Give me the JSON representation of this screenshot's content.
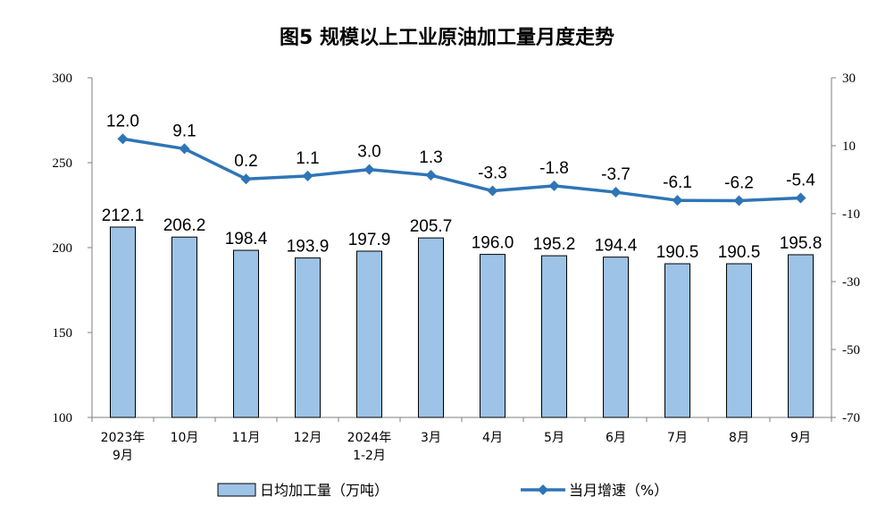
{
  "chart_data": {
    "type": "bar+line",
    "title": "图5  规模以上工业原油加工量月度走势",
    "categories": [
      [
        "2023年",
        "9月"
      ],
      [
        "10月"
      ],
      [
        "11月"
      ],
      [
        "12月"
      ],
      [
        "2024年",
        "1-2月"
      ],
      [
        "3月"
      ],
      [
        "4月"
      ],
      [
        "5月"
      ],
      [
        "6月"
      ],
      [
        "7月"
      ],
      [
        "8月"
      ],
      [
        "9月"
      ]
    ],
    "series": [
      {
        "name": "日均加工量（万吨）",
        "type": "bar",
        "axis": "left",
        "color": "#9dc3e6",
        "stroke": "#000000",
        "values": [
          212.1,
          206.2,
          198.4,
          193.9,
          197.9,
          205.7,
          196.0,
          195.2,
          194.4,
          190.5,
          190.5,
          195.8
        ],
        "labels": [
          "212.1",
          "206.2",
          "198.4",
          "193.9",
          "197.9",
          "205.7",
          "196.0",
          "195.2",
          "194.4",
          "190.5",
          "190.5",
          "195.8"
        ]
      },
      {
        "name": "当月增速（%）",
        "type": "line",
        "axis": "right",
        "color": "#2e75b6",
        "marker": "diamond",
        "values": [
          12.0,
          9.1,
          0.2,
          1.1,
          3.0,
          1.3,
          -3.3,
          -1.8,
          -3.7,
          -6.1,
          -6.2,
          -5.4
        ],
        "labels": [
          "12.0",
          "9.1",
          "0.2",
          "1.1",
          "3.0",
          "1.3",
          "-3.3",
          "-1.8",
          "-3.7",
          "-6.1",
          "-6.2",
          "-5.4"
        ]
      }
    ],
    "left_axis": {
      "ylim": [
        100,
        300
      ],
      "ticks": [
        "100",
        "150",
        "200",
        "250",
        "300"
      ]
    },
    "right_axis": {
      "ylim": [
        -70,
        30
      ],
      "ticks": [
        "-70",
        "-50",
        "-30",
        "-10",
        "10",
        "30"
      ]
    },
    "grid": false,
    "legend_position": "bottom"
  }
}
